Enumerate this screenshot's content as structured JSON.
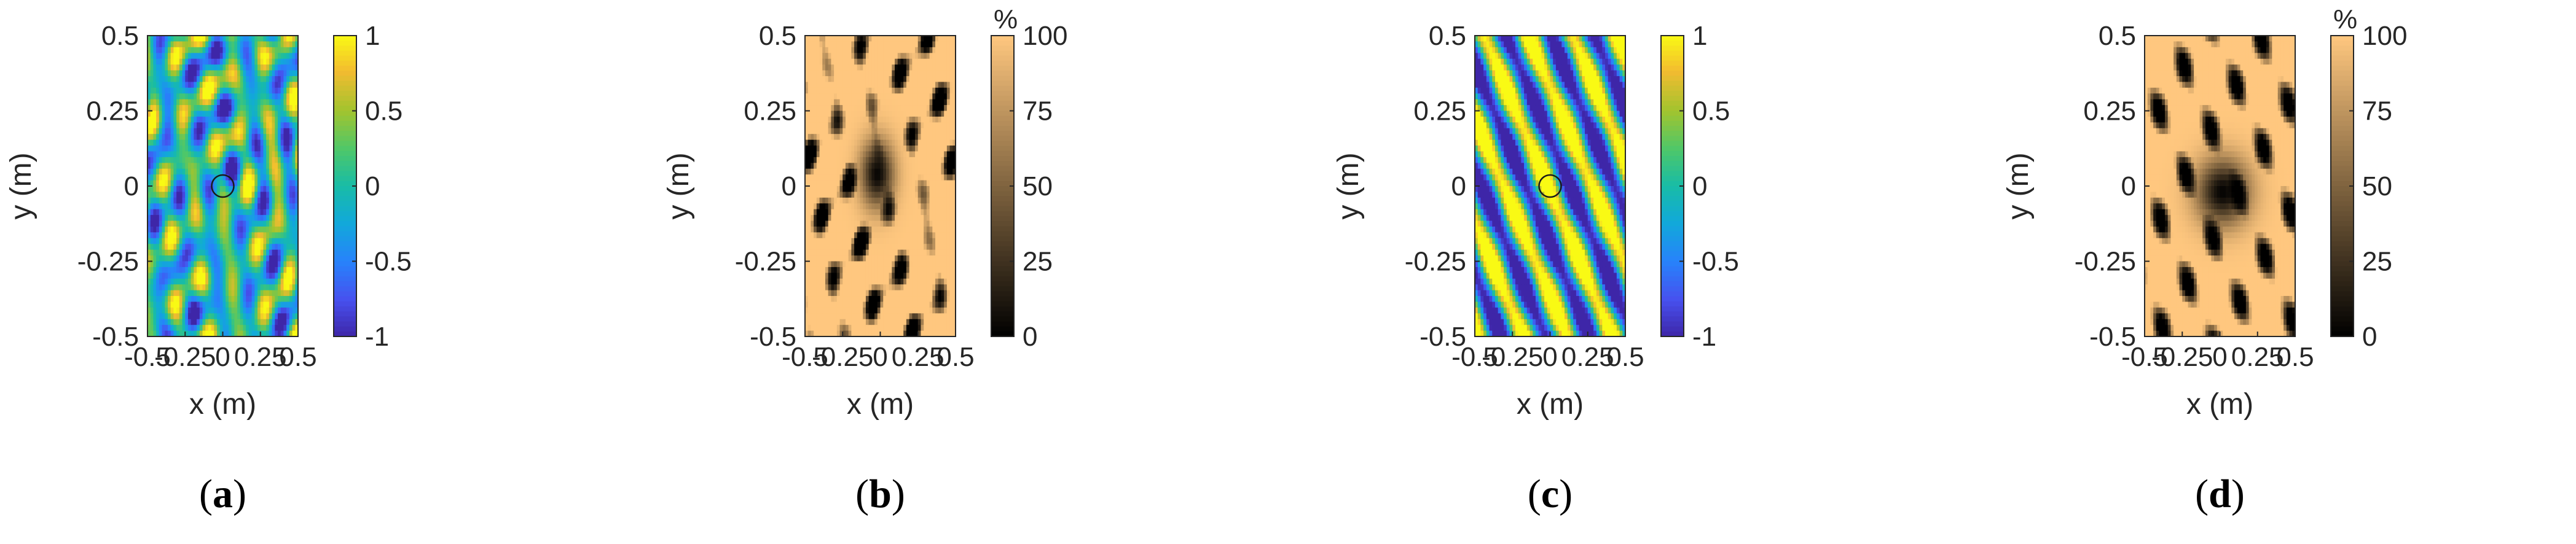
{
  "chart_data": [
    {
      "panel": "a",
      "type": "heatmap",
      "caption": "(a)",
      "xlabel": "x (m)",
      "ylabel": "y (m)",
      "xlim": [
        -0.5,
        0.5
      ],
      "ylim": [
        -0.5,
        0.5
      ],
      "xticks": [
        "-0.5",
        "-0.25",
        "0",
        "0.25",
        "0.5"
      ],
      "yticks": [
        "0.5",
        "0.25",
        "0",
        "-0.25",
        "-0.5"
      ],
      "colormap": "parula",
      "clim": [
        -1,
        1
      ],
      "colorbar_ticks": [
        "1",
        "0.5",
        "0",
        "-0.5",
        "-1"
      ],
      "colorbar_unit": "",
      "source_marker": {
        "x": 0,
        "y": 0
      },
      "pattern": "circular-speckle"
    },
    {
      "panel": "b",
      "type": "heatmap",
      "caption": "(b)",
      "xlabel": "x (m)",
      "ylabel": "y (m)",
      "xlim": [
        -0.5,
        0.5
      ],
      "ylim": [
        -0.5,
        0.5
      ],
      "xticks": [
        "-0.5",
        "-0.25",
        "0",
        "0.25",
        "0.5"
      ],
      "yticks": [
        "0.5",
        "0.25",
        "0",
        "-0.25",
        "-0.5"
      ],
      "colormap": "copper",
      "clim": [
        0,
        100
      ],
      "colorbar_ticks": [
        "100",
        "75",
        "50",
        "25",
        "0"
      ],
      "colorbar_unit": "%",
      "pattern": "error-circular"
    },
    {
      "panel": "c",
      "type": "heatmap",
      "caption": "(c)",
      "xlabel": "x (m)",
      "ylabel": "y (m)",
      "xlim": [
        -0.5,
        0.5
      ],
      "ylim": [
        -0.5,
        0.5
      ],
      "xticks": [
        "-0.5",
        "-0.25",
        "0",
        "0.25",
        "0.5"
      ],
      "yticks": [
        "0.5",
        "0.25",
        "0",
        "-0.25",
        "-0.5"
      ],
      "colormap": "parula",
      "clim": [
        -1,
        1
      ],
      "colorbar_ticks": [
        "1",
        "0.5",
        "0",
        "-0.5",
        "-1"
      ],
      "colorbar_unit": "",
      "source_marker": {
        "x": 0,
        "y": 0
      },
      "pattern": "diagonal-stripes"
    },
    {
      "panel": "d",
      "type": "heatmap",
      "caption": "(d)",
      "xlabel": "x (m)",
      "ylabel": "y (m)",
      "xlim": [
        -0.5,
        0.5
      ],
      "ylim": [
        -0.5,
        0.5
      ],
      "xticks": [
        "-0.5",
        "-0.25",
        "0",
        "0.25",
        "0.5"
      ],
      "yticks": [
        "0.5",
        "0.25",
        "0",
        "-0.25",
        "-0.5"
      ],
      "colormap": "copper",
      "clim": [
        0,
        100
      ],
      "colorbar_ticks": [
        "100",
        "75",
        "50",
        "25",
        "0"
      ],
      "colorbar_unit": "%",
      "pattern": "error-diagonal"
    }
  ]
}
